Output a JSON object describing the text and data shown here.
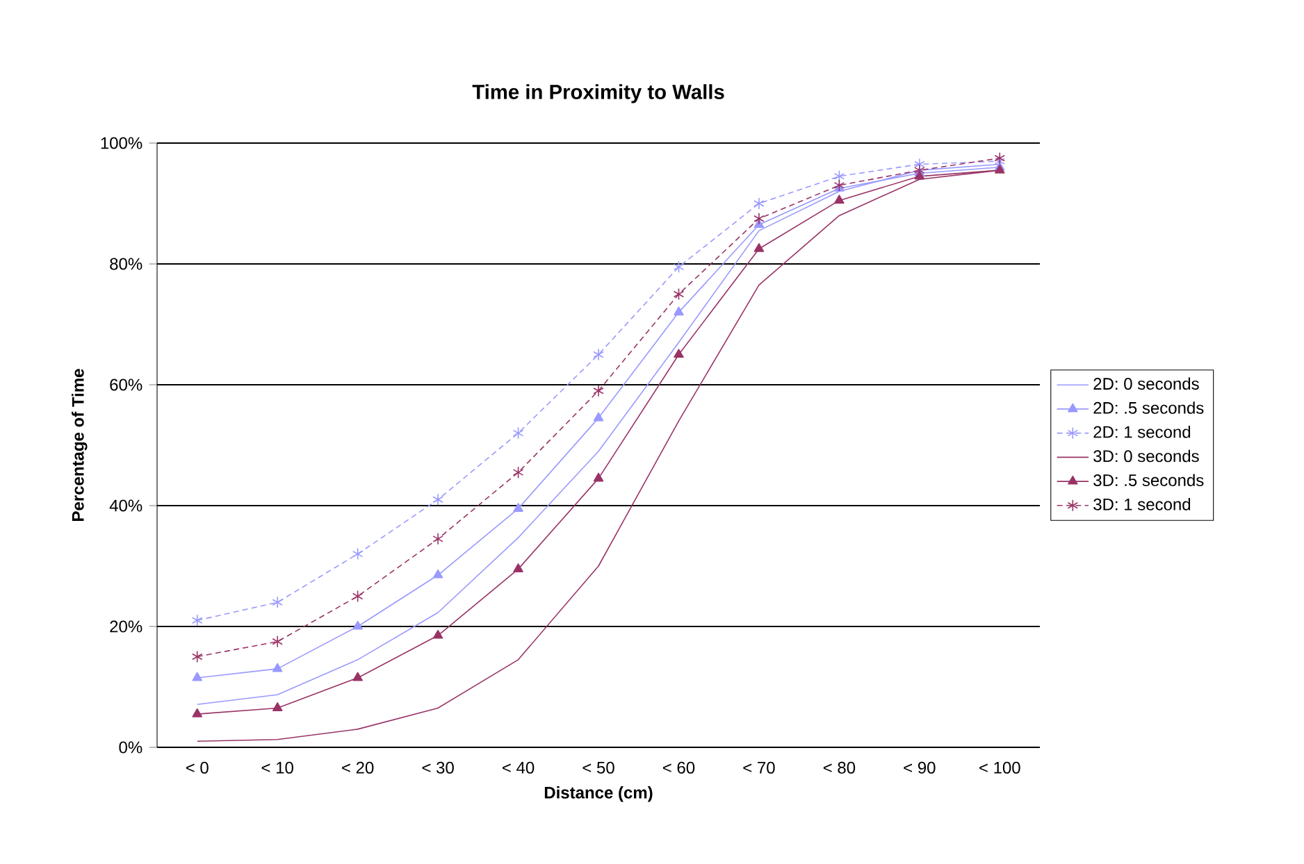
{
  "chart_data": {
    "type": "line",
    "title": "Time in Proximity to Walls",
    "xlabel": "Distance (cm)",
    "ylabel": "Percentage of Time",
    "categories": [
      "< 0",
      "< 10",
      "< 20",
      "< 30",
      "< 40",
      "< 50",
      "< 60",
      "< 70",
      "< 80",
      "< 90",
      "< 100"
    ],
    "ylim": [
      0,
      100
    ],
    "yticks": [
      {
        "value": 0,
        "label": "0%"
      },
      {
        "value": 20,
        "label": "20%"
      },
      {
        "value": 40,
        "label": "40%"
      },
      {
        "value": 60,
        "label": "60%"
      },
      {
        "value": 80,
        "label": "80%"
      },
      {
        "value": 100,
        "label": "100%"
      }
    ],
    "grid": "y",
    "legend": "right",
    "series": [
      {
        "name": "2D: 0 seconds",
        "color": "#9999ff",
        "marker": "none",
        "line_style": "solid",
        "values": [
          7.1,
          8.7,
          14.5,
          22.3,
          34.7,
          49,
          67,
          85.5,
          92,
          95.5,
          96.5
        ]
      },
      {
        "name": "2D: .5 seconds",
        "color": "#9999ff",
        "marker": "triangle",
        "line_style": "solid",
        "values": [
          11.5,
          13,
          20,
          28.5,
          39.5,
          54.5,
          72,
          86.5,
          92.5,
          95,
          96
        ]
      },
      {
        "name": "2D: 1 second",
        "color": "#9999ff",
        "marker": "cross",
        "line_style": "dashed",
        "values": [
          21,
          24,
          32,
          41,
          52,
          65,
          79.5,
          90,
          94.5,
          96.5,
          97
        ]
      },
      {
        "name": "3D: 0 seconds",
        "color": "#993366",
        "marker": "none",
        "line_style": "solid",
        "values": [
          1,
          1.3,
          3,
          6.5,
          14.5,
          30,
          54,
          76.5,
          88,
          94,
          95.5
        ]
      },
      {
        "name": "3D: .5 seconds",
        "color": "#993366",
        "marker": "triangle",
        "line_style": "solid",
        "values": [
          5.5,
          6.5,
          11.5,
          18.5,
          29.5,
          44.5,
          65,
          82.5,
          90.5,
          94.5,
          95.5
        ]
      },
      {
        "name": "3D: 1 second",
        "color": "#993366",
        "marker": "cross",
        "line_style": "dashed",
        "values": [
          15,
          17.5,
          25,
          34.5,
          45.5,
          59,
          75,
          87.5,
          93,
          95.5,
          97.5
        ]
      }
    ]
  }
}
